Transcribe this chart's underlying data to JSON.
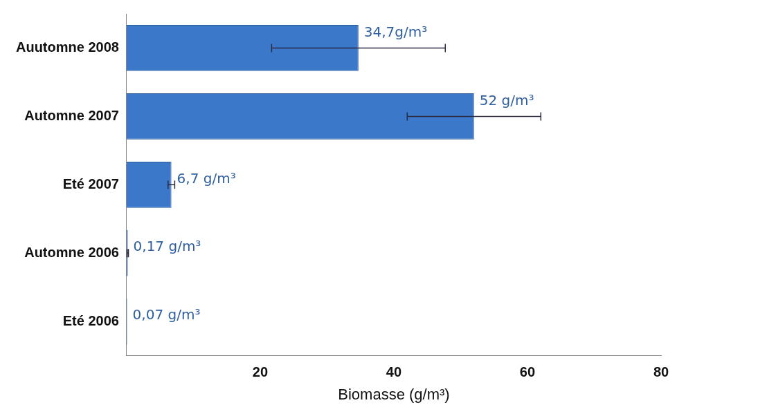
{
  "chart_data": {
    "type": "bar",
    "orientation": "horizontal",
    "categories": [
      "Auutomne 2008",
      "Automne 2007",
      "Eté 2007",
      "Automne 2006",
      "Eté 2006"
    ],
    "values": [
      34.7,
      52,
      6.7,
      0.17,
      0.07
    ],
    "errors": [
      13,
      10,
      0.5,
      0.1,
      null
    ],
    "value_labels": [
      "34,7g/m³",
      "52 g/m³",
      "6,7 g/m³",
      "0,17 g/m³",
      "0,07 g/m³"
    ],
    "color": "#3b78c9",
    "xlim": [
      0,
      80
    ],
    "xticks": [
      20,
      40,
      60,
      80
    ],
    "xlabel": "Biomasse (g/m³)",
    "grid": false,
    "legend": false
  }
}
